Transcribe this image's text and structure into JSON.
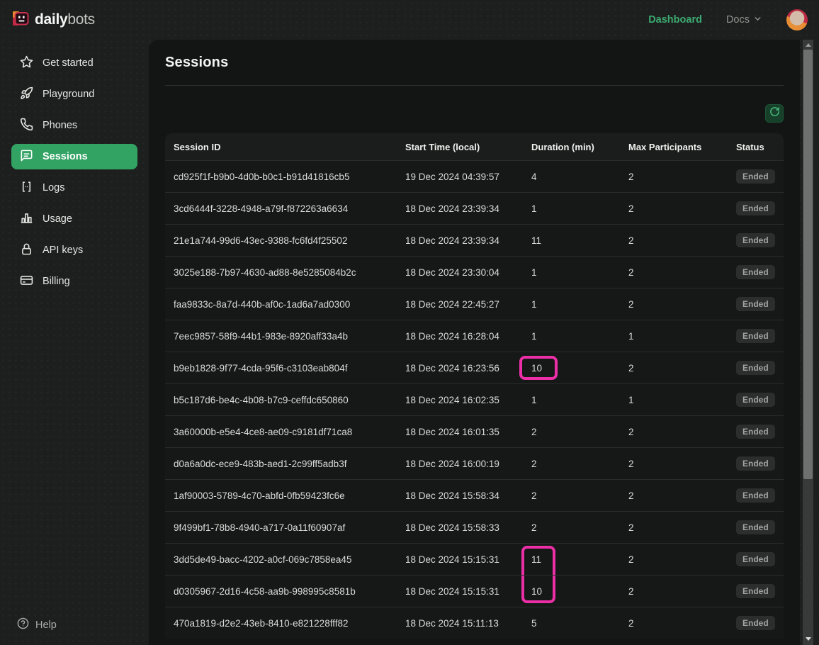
{
  "brand": {
    "name_bold": "daily",
    "name_light": "bots"
  },
  "topnav": {
    "dashboard_label": "Dashboard",
    "docs_label": "Docs"
  },
  "sidebar": {
    "items": [
      {
        "label": "Get started",
        "icon": "star",
        "active": false
      },
      {
        "label": "Playground",
        "icon": "rocket",
        "active": false
      },
      {
        "label": "Phones",
        "icon": "phone",
        "active": false
      },
      {
        "label": "Sessions",
        "icon": "chat",
        "active": true
      },
      {
        "label": "Logs",
        "icon": "brackets",
        "active": false
      },
      {
        "label": "Usage",
        "icon": "bar-chart",
        "active": false
      },
      {
        "label": "API keys",
        "icon": "lock",
        "active": false
      },
      {
        "label": "Billing",
        "icon": "credit-card",
        "active": false
      }
    ],
    "help_label": "Help"
  },
  "page": {
    "title": "Sessions"
  },
  "table": {
    "columns": [
      "Session ID",
      "Start Time (local)",
      "Duration (min)",
      "Max Participants",
      "Status"
    ],
    "rows": [
      {
        "session_id": "cd925f1f-b9b0-4d0b-b0c1-b91d41816cb5",
        "start_time": "19 Dec 2024 04:39:57",
        "duration_min": "4",
        "max_participants": "2",
        "status": "Ended",
        "highlight": null
      },
      {
        "session_id": "3cd6444f-3228-4948-a79f-f872263a6634",
        "start_time": "18 Dec 2024 23:39:34",
        "duration_min": "1",
        "max_participants": "2",
        "status": "Ended",
        "highlight": null
      },
      {
        "session_id": "21e1a744-99d6-43ec-9388-fc6fd4f25502",
        "start_time": "18 Dec 2024 23:39:34",
        "duration_min": "11",
        "max_participants": "2",
        "status": "Ended",
        "highlight": null
      },
      {
        "session_id": "3025e188-7b97-4630-ad88-8e5285084b2c",
        "start_time": "18 Dec 2024 23:30:04",
        "duration_min": "1",
        "max_participants": "2",
        "status": "Ended",
        "highlight": null
      },
      {
        "session_id": "faa9833c-8a7d-440b-af0c-1ad6a7ad0300",
        "start_time": "18 Dec 2024 22:45:27",
        "duration_min": "1",
        "max_participants": "2",
        "status": "Ended",
        "highlight": null
      },
      {
        "session_id": "7eec9857-58f9-44b1-983e-8920aff33a4b",
        "start_time": "18 Dec 2024 16:28:04",
        "duration_min": "1",
        "max_participants": "1",
        "status": "Ended",
        "highlight": null
      },
      {
        "session_id": "b9eb1828-9f77-4cda-95f6-c3103eab804f",
        "start_time": "18 Dec 2024 16:23:56",
        "duration_min": "10",
        "max_participants": "2",
        "status": "Ended",
        "highlight": "single"
      },
      {
        "session_id": "b5c187d6-be4c-4b08-b7c9-ceffdc650860",
        "start_time": "18 Dec 2024 16:02:35",
        "duration_min": "1",
        "max_participants": "1",
        "status": "Ended",
        "highlight": null
      },
      {
        "session_id": "3a60000b-e5e4-4ce8-ae09-c9181df71ca8",
        "start_time": "18 Dec 2024 16:01:35",
        "duration_min": "2",
        "max_participants": "2",
        "status": "Ended",
        "highlight": null
      },
      {
        "session_id": "d0a6a0dc-ece9-483b-aed1-2c99ff5adb3f",
        "start_time": "18 Dec 2024 16:00:19",
        "duration_min": "2",
        "max_participants": "2",
        "status": "Ended",
        "highlight": null
      },
      {
        "session_id": "1af90003-5789-4c70-abfd-0fb59423fc6e",
        "start_time": "18 Dec 2024 15:58:34",
        "duration_min": "2",
        "max_participants": "2",
        "status": "Ended",
        "highlight": null
      },
      {
        "session_id": "9f499bf1-78b8-4940-a717-0a11f60907af",
        "start_time": "18 Dec 2024 15:58:33",
        "duration_min": "2",
        "max_participants": "2",
        "status": "Ended",
        "highlight": null
      },
      {
        "session_id": "3dd5de49-bacc-4202-a0cf-069c7858ea45",
        "start_time": "18 Dec 2024 15:15:31",
        "duration_min": "11",
        "max_participants": "2",
        "status": "Ended",
        "highlight": "span-top"
      },
      {
        "session_id": "d0305967-2d16-4c58-aa9b-998995c8581b",
        "start_time": "18 Dec 2024 15:15:31",
        "duration_min": "10",
        "max_participants": "2",
        "status": "Ended",
        "highlight": "span-bottom"
      },
      {
        "session_id": "470a1819-d2e2-43eb-8410-e821228fff82",
        "start_time": "18 Dec 2024 15:11:13",
        "duration_min": "5",
        "max_participants": "2",
        "status": "Ended",
        "highlight": null
      }
    ]
  },
  "colors": {
    "accent_green": "#3cab71",
    "active_item_green": "#32a363",
    "highlight_pink": "#ec2fa7",
    "badge_bg": "#2c2e2d"
  }
}
